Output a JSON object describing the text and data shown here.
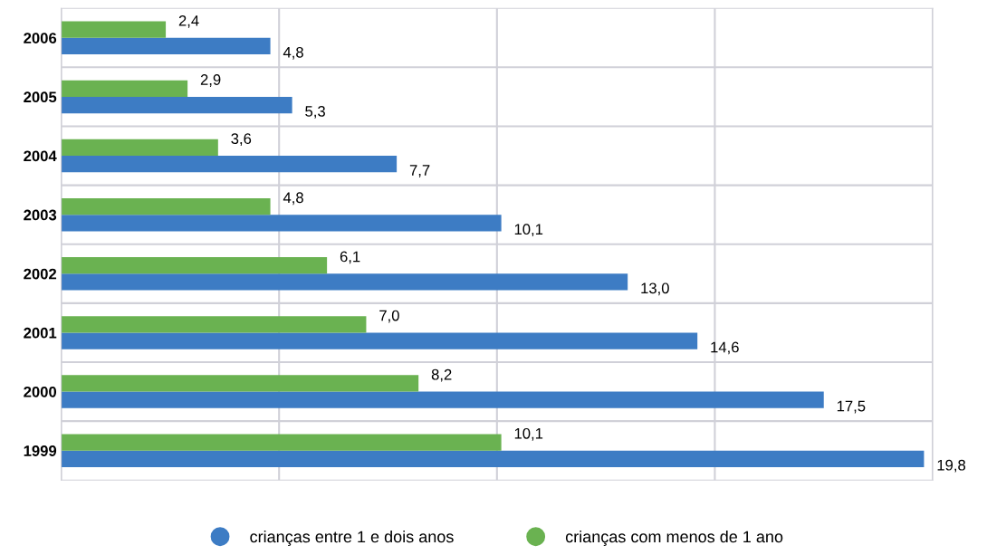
{
  "chart_data": {
    "type": "bar",
    "orientation": "horizontal",
    "categories": [
      "2006",
      "2005",
      "2004",
      "2003",
      "2002",
      "2001",
      "2000",
      "1999"
    ],
    "series": [
      {
        "name": "crianças entre 1 e dois anos",
        "color": "#3d7cc4",
        "values": [
          4.8,
          5.3,
          7.7,
          10.1,
          13.0,
          14.6,
          17.5,
          19.8
        ],
        "value_labels": [
          "4,8",
          "5,3",
          "7,7",
          "10,1",
          "13,0",
          "14,6",
          "17,5",
          "19,8"
        ]
      },
      {
        "name": "crianças com menos de 1 ano",
        "color": "#6ab251",
        "values": [
          2.4,
          2.9,
          3.6,
          4.8,
          6.1,
          7.0,
          8.2,
          10.1
        ],
        "value_labels": [
          "2,4",
          "2,9",
          "3,6",
          "4,8",
          "6,1",
          "7,0",
          "8,2",
          "10,1"
        ]
      }
    ],
    "xlim": [
      0,
      20
    ],
    "xticks": [
      {
        "value": 0,
        "label": null
      },
      {
        "value": 5,
        "label": null
      },
      {
        "value": 10,
        "label": null
      },
      {
        "value": 15,
        "label": null
      },
      {
        "value": 20,
        "label": null
      }
    ],
    "tick_labels": "y",
    "grid": true,
    "legend": "bottom",
    "marker": "circle"
  }
}
